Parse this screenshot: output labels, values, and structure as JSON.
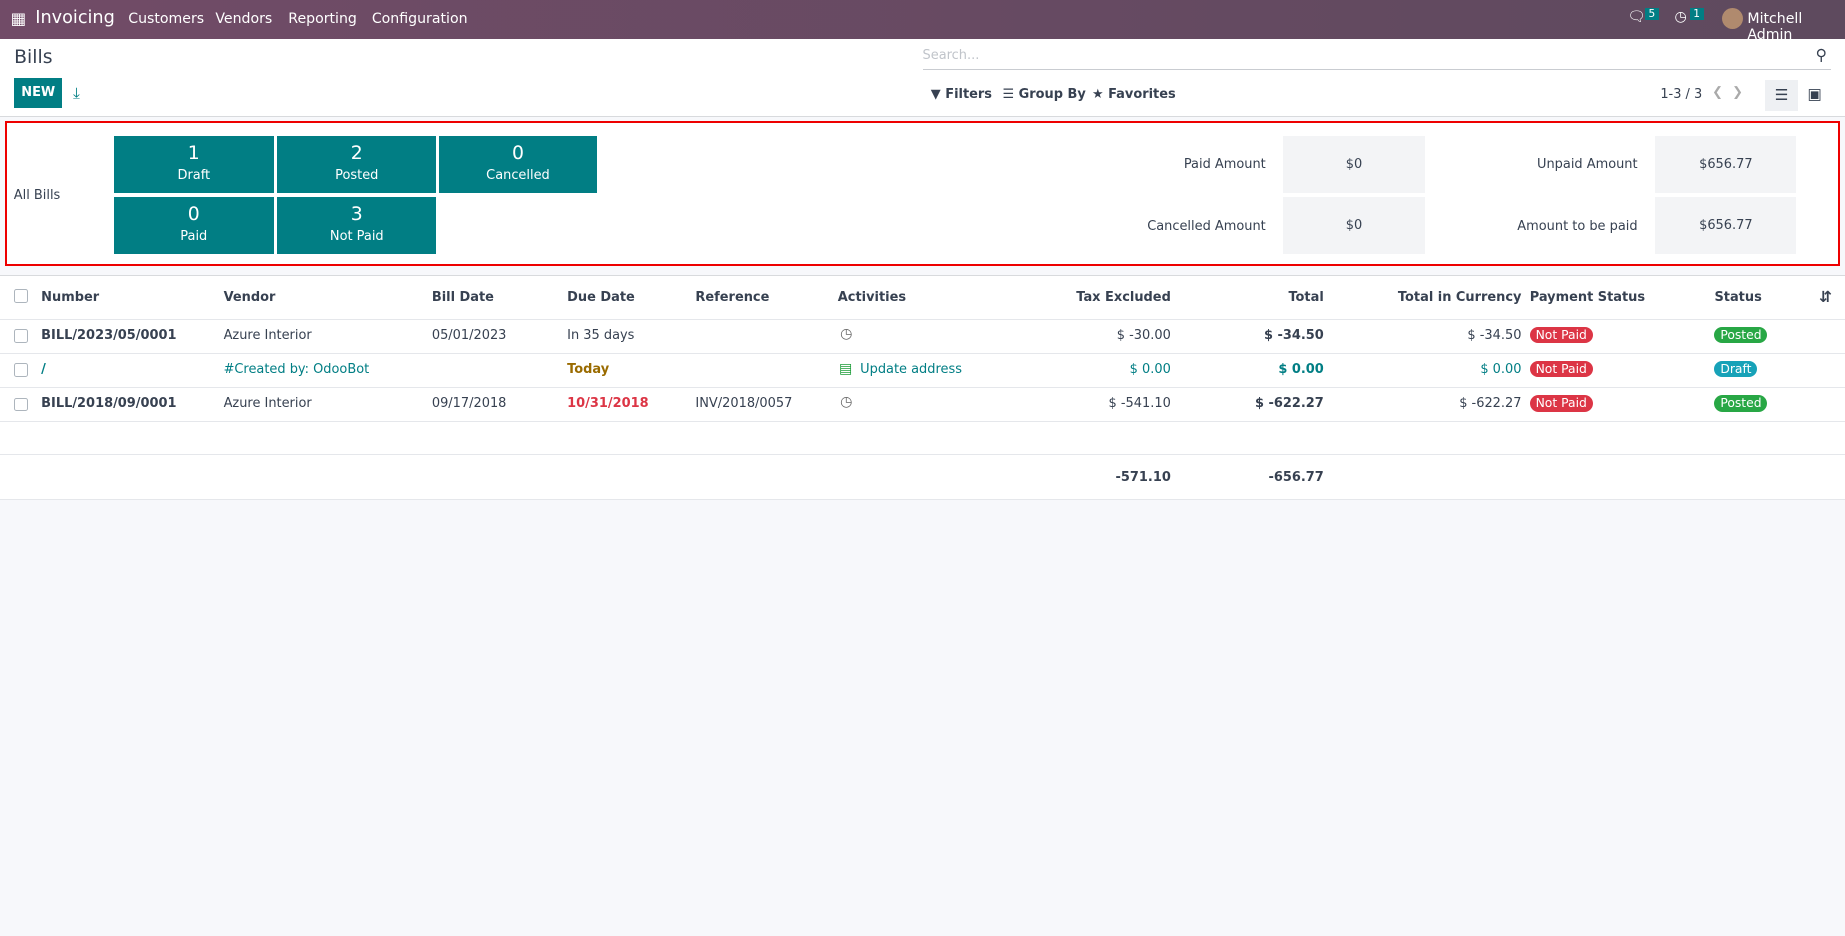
{
  "nav": {
    "app": "Invoicing",
    "menu": [
      "Customers",
      "Vendors",
      "Reporting",
      "Configuration"
    ],
    "messages_count": "5",
    "activities_count": "1",
    "user": "Mitchell Admin"
  },
  "page": {
    "title": "Bills",
    "new_label": "NEW",
    "search_placeholder": "Search...",
    "filters": "Filters",
    "group_by": "Group By",
    "favorites": "Favorites",
    "pager": "1-3 / 3"
  },
  "dashboard": {
    "all_label": "All Bills",
    "tiles": [
      {
        "count": "1",
        "label": "Draft"
      },
      {
        "count": "2",
        "label": "Posted"
      },
      {
        "count": "0",
        "label": "Cancelled"
      },
      {
        "count": "0",
        "label": "Paid"
      },
      {
        "count": "3",
        "label": "Not Paid"
      }
    ],
    "amounts": [
      {
        "label": "Paid Amount",
        "value": "$0"
      },
      {
        "label": "Unpaid Amount",
        "value": "$656.77"
      },
      {
        "label": "Cancelled Amount",
        "value": "$0"
      },
      {
        "label": "Amount to be paid",
        "value": "$656.77"
      }
    ]
  },
  "table": {
    "columns": [
      "Number",
      "Vendor",
      "Bill Date",
      "Due Date",
      "Reference",
      "Activities",
      "Tax Excluded",
      "Total",
      "Total in Currency",
      "Payment Status",
      "Status"
    ],
    "rows": [
      {
        "number": "BILL/2023/05/0001",
        "vendor": "Azure Interior",
        "bill_date": "05/01/2023",
        "due_date": "In 35 days",
        "reference": "",
        "activity": "",
        "tax_excluded": "$ -30.00",
        "total": "$ -34.50",
        "total_currency": "$ -34.50",
        "payment_status": "Not Paid",
        "status": "Posted"
      },
      {
        "number": "/",
        "vendor": "#Created by: OdooBot",
        "bill_date": "",
        "due_date": "Today",
        "reference": "",
        "activity": "Update address",
        "tax_excluded": "$ 0.00",
        "total": "$ 0.00",
        "total_currency": "$ 0.00",
        "payment_status": "Not Paid",
        "status": "Draft"
      },
      {
        "number": "BILL/2018/09/0001",
        "vendor": "Azure Interior",
        "bill_date": "09/17/2018",
        "due_date": "10/31/2018",
        "reference": "INV/2018/0057",
        "activity": "",
        "tax_excluded": "$ -541.10",
        "total": "$ -622.27",
        "total_currency": "$ -622.27",
        "payment_status": "Not Paid",
        "status": "Posted"
      }
    ],
    "totals": {
      "tax_excluded": "-571.10",
      "total": "-656.77"
    }
  },
  "colors": {
    "brand": "#714b67",
    "accent": "#017e84",
    "danger": "#dc3545",
    "success": "#28a745",
    "info": "#17a2b8"
  }
}
